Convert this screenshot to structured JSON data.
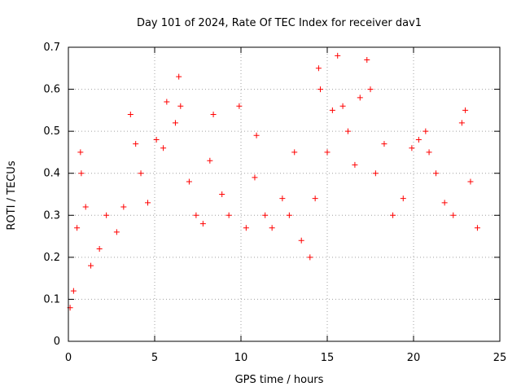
{
  "chart_data": {
    "type": "scatter",
    "title": "Day 101 of 2024, Rate Of TEC Index for receiver dav1",
    "xlabel": "GPS time / hours",
    "ylabel": "ROTI / TECUs",
    "xlim": [
      0,
      25
    ],
    "ylim": [
      0,
      0.7
    ],
    "xticks": [
      "0",
      "5",
      "10",
      "15",
      "20",
      "25"
    ],
    "yticks": [
      "0",
      "0.1",
      "0.2",
      "0.3",
      "0.4",
      "0.5",
      "0.6",
      "0.7"
    ],
    "grid": true,
    "marker": "+",
    "color": "#ff0000",
    "series": [
      {
        "values": [
          [
            0.1,
            0.08
          ],
          [
            0.3,
            0.12
          ],
          [
            0.5,
            0.27
          ],
          [
            0.7,
            0.45
          ],
          [
            0.75,
            0.4
          ],
          [
            1.0,
            0.32
          ],
          [
            1.3,
            0.18
          ],
          [
            1.8,
            0.22
          ],
          [
            2.2,
            0.3
          ],
          [
            2.8,
            0.26
          ],
          [
            3.2,
            0.32
          ],
          [
            3.6,
            0.54
          ],
          [
            3.9,
            0.47
          ],
          [
            4.2,
            0.4
          ],
          [
            4.6,
            0.33
          ],
          [
            5.1,
            0.48
          ],
          [
            5.5,
            0.46
          ],
          [
            5.7,
            0.57
          ],
          [
            6.2,
            0.52
          ],
          [
            6.4,
            0.63
          ],
          [
            6.5,
            0.56
          ],
          [
            7.0,
            0.38
          ],
          [
            7.4,
            0.3
          ],
          [
            7.8,
            0.28
          ],
          [
            8.2,
            0.43
          ],
          [
            8.4,
            0.54
          ],
          [
            8.9,
            0.35
          ],
          [
            9.3,
            0.3
          ],
          [
            9.9,
            0.56
          ],
          [
            10.3,
            0.27
          ],
          [
            10.8,
            0.39
          ],
          [
            10.9,
            0.49
          ],
          [
            11.4,
            0.3
          ],
          [
            11.8,
            0.27
          ],
          [
            12.4,
            0.34
          ],
          [
            12.8,
            0.3
          ],
          [
            13.1,
            0.45
          ],
          [
            13.5,
            0.24
          ],
          [
            14.0,
            0.2
          ],
          [
            14.3,
            0.34
          ],
          [
            14.5,
            0.65
          ],
          [
            14.6,
            0.6
          ],
          [
            15.0,
            0.45
          ],
          [
            15.3,
            0.55
          ],
          [
            15.6,
            0.68
          ],
          [
            15.9,
            0.56
          ],
          [
            16.2,
            0.5
          ],
          [
            16.6,
            0.42
          ],
          [
            16.9,
            0.58
          ],
          [
            17.3,
            0.67
          ],
          [
            17.5,
            0.6
          ],
          [
            17.8,
            0.4
          ],
          [
            18.3,
            0.47
          ],
          [
            18.8,
            0.3
          ],
          [
            19.4,
            0.34
          ],
          [
            19.9,
            0.46
          ],
          [
            20.3,
            0.48
          ],
          [
            20.7,
            0.5
          ],
          [
            20.9,
            0.45
          ],
          [
            21.3,
            0.4
          ],
          [
            21.8,
            0.33
          ],
          [
            22.3,
            0.3
          ],
          [
            22.8,
            0.52
          ],
          [
            23.0,
            0.55
          ],
          [
            23.3,
            0.38
          ],
          [
            23.7,
            0.27
          ]
        ]
      }
    ]
  }
}
